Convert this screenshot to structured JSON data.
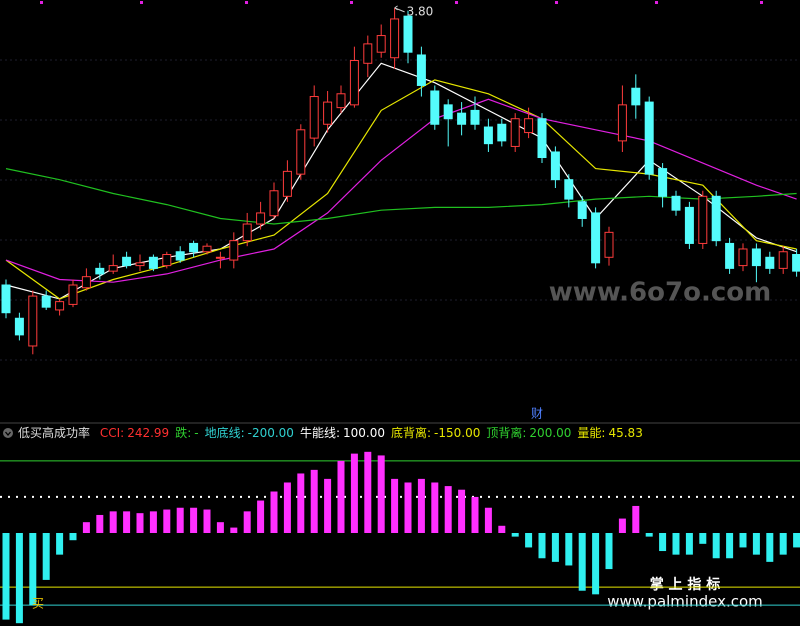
{
  "chart_data": [
    {
      "type": "candlestick",
      "open": [
        2.8,
        2.68,
        2.58,
        2.76,
        2.71,
        2.73,
        2.79,
        2.86,
        2.85,
        2.9,
        2.87,
        2.9,
        2.87,
        2.92,
        2.95,
        2.92,
        2.9,
        2.89,
        2.96,
        3.02,
        3.05,
        3.12,
        3.2,
        3.33,
        3.38,
        3.44,
        3.45,
        3.6,
        3.64,
        3.62,
        3.77,
        3.63,
        3.5,
        3.45,
        3.42,
        3.43,
        3.37,
        3.38,
        3.3,
        3.35,
        3.4,
        3.28,
        3.18,
        3.1,
        3.06,
        2.9,
        3.32,
        3.51,
        3.46,
        3.22,
        3.12,
        3.08,
        2.95,
        3.12,
        2.95,
        2.87,
        2.93,
        2.9,
        2.86,
        2.91
      ],
      "high": [
        2.82,
        2.7,
        2.78,
        2.78,
        2.75,
        2.82,
        2.86,
        2.88,
        2.91,
        2.92,
        2.91,
        2.91,
        2.92,
        2.94,
        2.96,
        2.95,
        2.92,
        2.99,
        3.06,
        3.1,
        3.17,
        3.25,
        3.38,
        3.52,
        3.5,
        3.52,
        3.66,
        3.7,
        3.74,
        3.8,
        3.79,
        3.66,
        3.52,
        3.47,
        3.46,
        3.48,
        3.4,
        3.4,
        3.42,
        3.44,
        3.42,
        3.3,
        3.2,
        3.12,
        3.08,
        3.01,
        3.52,
        3.56,
        3.48,
        3.24,
        3.14,
        3.1,
        3.14,
        3.14,
        2.97,
        2.95,
        2.95,
        2.92,
        2.94,
        2.93
      ],
      "low": [
        2.68,
        2.6,
        2.55,
        2.71,
        2.69,
        2.72,
        2.78,
        2.82,
        2.84,
        2.86,
        2.85,
        2.85,
        2.86,
        2.88,
        2.9,
        2.91,
        2.86,
        2.86,
        2.94,
        3.0,
        3.04,
        3.1,
        3.18,
        3.3,
        3.35,
        3.42,
        3.44,
        3.55,
        3.62,
        3.58,
        3.6,
        3.48,
        3.36,
        3.3,
        3.34,
        3.36,
        3.28,
        3.3,
        3.28,
        3.33,
        3.24,
        3.15,
        3.08,
        3.01,
        2.86,
        2.87,
        3.28,
        3.4,
        3.18,
        3.08,
        3.05,
        2.93,
        2.93,
        2.94,
        2.84,
        2.85,
        2.81,
        2.84,
        2.84,
        2.83
      ],
      "close": [
        2.7,
        2.62,
        2.76,
        2.72,
        2.74,
        2.8,
        2.83,
        2.84,
        2.87,
        2.87,
        2.88,
        2.86,
        2.91,
        2.89,
        2.92,
        2.94,
        2.9,
        2.96,
        3.02,
        3.06,
        3.14,
        3.21,
        3.36,
        3.48,
        3.46,
        3.49,
        3.61,
        3.67,
        3.7,
        3.76,
        3.64,
        3.52,
        3.38,
        3.4,
        3.38,
        3.38,
        3.31,
        3.32,
        3.4,
        3.4,
        3.26,
        3.18,
        3.11,
        3.04,
        2.88,
        2.99,
        3.45,
        3.45,
        3.2,
        3.12,
        3.07,
        2.95,
        3.12,
        2.96,
        2.86,
        2.93,
        2.87,
        2.86,
        2.92,
        2.85
      ],
      "up_color": "#ff3c3c",
      "down_color": "#54fcfc",
      "ylim": [
        2.45,
        3.85
      ],
      "max_label": "3.80",
      "event_label": "财",
      "line_x": [
        0,
        4,
        8,
        12,
        16,
        20,
        24,
        28,
        32,
        36,
        40,
        44,
        48,
        52,
        56,
        59
      ],
      "lines": [
        {
          "color": "#ffffff",
          "values": [
            2.8,
            2.75,
            2.86,
            2.9,
            2.93,
            3.04,
            3.36,
            3.6,
            3.53,
            3.43,
            3.33,
            3.04,
            3.25,
            3.12,
            2.97,
            2.92
          ]
        },
        {
          "color": "#e6e600",
          "values": [
            2.89,
            2.75,
            2.82,
            2.87,
            2.93,
            2.98,
            3.13,
            3.43,
            3.54,
            3.49,
            3.4,
            3.22,
            3.2,
            3.16,
            2.96,
            2.93
          ]
        },
        {
          "color": "#e020e0",
          "values": [
            2.89,
            2.82,
            2.81,
            2.84,
            2.89,
            2.93,
            3.06,
            3.25,
            3.4,
            3.47,
            3.4,
            3.36,
            3.32,
            3.24,
            3.16,
            3.11
          ]
        },
        {
          "color": "#20c020",
          "values": [
            3.22,
            3.18,
            3.13,
            3.09,
            3.04,
            3.02,
            3.04,
            3.07,
            3.08,
            3.08,
            3.09,
            3.11,
            3.12,
            3.11,
            3.12,
            3.13
          ]
        }
      ]
    },
    {
      "type": "bar",
      "title": "低买高成功率",
      "values": [
        -240,
        -250,
        -200,
        -130,
        -60,
        -20,
        30,
        50,
        60,
        60,
        55,
        60,
        65,
        70,
        70,
        65,
        30,
        15,
        60,
        90,
        115,
        140,
        165,
        175,
        150,
        200,
        220,
        225,
        215,
        150,
        140,
        150,
        140,
        130,
        120,
        100,
        70,
        20,
        -10,
        -40,
        -70,
        -80,
        -90,
        -160,
        -170,
        -100,
        40,
        75,
        -10,
        -50,
        -60,
        -60,
        -30,
        -70,
        -70,
        -40,
        -60,
        -80,
        -60,
        -40
      ],
      "pos_color": "#ff30ff",
      "neg_color": "#30f0f0",
      "ylim": [
        -255,
        255
      ],
      "legend": [
        {
          "name": "CCI:",
          "value_label": "242.99",
          "color": "#ff3030"
        },
        {
          "name": "跌:",
          "value_label": "-",
          "color": "#30d030"
        },
        {
          "name": "地底线:",
          "value": -200,
          "value_label": "-200.00",
          "color": "#30d0d0"
        },
        {
          "name": "牛能线:",
          "value": 100,
          "value_label": "100.00",
          "color": "#ffffff"
        },
        {
          "name": "底背离:",
          "value": -150,
          "value_label": "-150.00",
          "color": "#e6e600"
        },
        {
          "name": "顶背离:",
          "value": 200,
          "value_label": "200.00",
          "color": "#30d030"
        },
        {
          "name": "量能:",
          "value_label": "45.83",
          "color": "#e6e600"
        }
      ],
      "buy_label": "买"
    }
  ],
  "watermarks": {
    "site": "www.6o7o.com",
    "brand": "掌 上 指 标",
    "brand_site": "www.palmindex.com"
  }
}
